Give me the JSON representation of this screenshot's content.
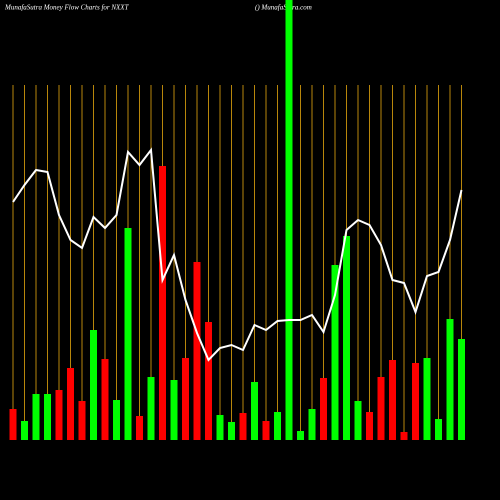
{
  "chart_data": {
    "type": "bar",
    "title": "MunafaSutra  Money Flow  Charts for NXXT",
    "subtitle": "() MunafaSutra.com",
    "values": [
      31,
      19,
      46,
      46,
      50,
      72,
      39,
      110,
      81,
      40,
      212,
      24,
      63,
      274,
      60,
      82,
      178,
      118,
      25,
      18,
      27,
      58,
      19,
      28,
      440,
      9,
      31,
      62,
      175,
      204,
      39,
      28,
      63,
      80,
      8,
      77,
      82,
      21,
      121,
      101
    ],
    "bar_colors": [
      "#ff0000",
      "#00ff00",
      "#00ff00",
      "#00ff00",
      "#ff0000",
      "#ff0000",
      "#ff0000",
      "#00ff00",
      "#ff0000",
      "#00ff00",
      "#00ff00",
      "#ff0000",
      "#00ff00",
      "#ff0000",
      "#00ff00",
      "#ff0000",
      "#ff0000",
      "#ff0000",
      "#00ff00",
      "#00ff00",
      "#ff0000",
      "#00ff00",
      "#ff0000",
      "#00ff00",
      "#00ff00",
      "#00ff00",
      "#00ff00",
      "#ff0000",
      "#00ff00",
      "#00ff00",
      "#00ff00",
      "#ff0000",
      "#ff0000",
      "#ff0000",
      "#ff0000",
      "#ff0000",
      "#00ff00",
      "#00ff00",
      "#00ff00",
      "#00ff00"
    ],
    "line": {
      "color": "#ffffff",
      "values": [
        238,
        255,
        270,
        268,
        225,
        200,
        192,
        223,
        212,
        225,
        288,
        275,
        290,
        160,
        185,
        140,
        107,
        80,
        92,
        95,
        90,
        115,
        110,
        119,
        120,
        120,
        125,
        108,
        145,
        210,
        220,
        215,
        195,
        160,
        157,
        128,
        164,
        168,
        200,
        250
      ]
    },
    "ylim": [
      0,
      440
    ],
    "grid_color": "#b8860b"
  }
}
